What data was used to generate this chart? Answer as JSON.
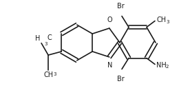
{
  "bg_color": "#ffffff",
  "line_color": "#1a1a1a",
  "line_width": 1.2,
  "font_size": 7.0,
  "sub_font_size": 5.0,
  "figsize": [
    2.76,
    1.28
  ],
  "dpi": 100,
  "xlim": [
    0,
    276
  ],
  "ylim": [
    0,
    128
  ]
}
